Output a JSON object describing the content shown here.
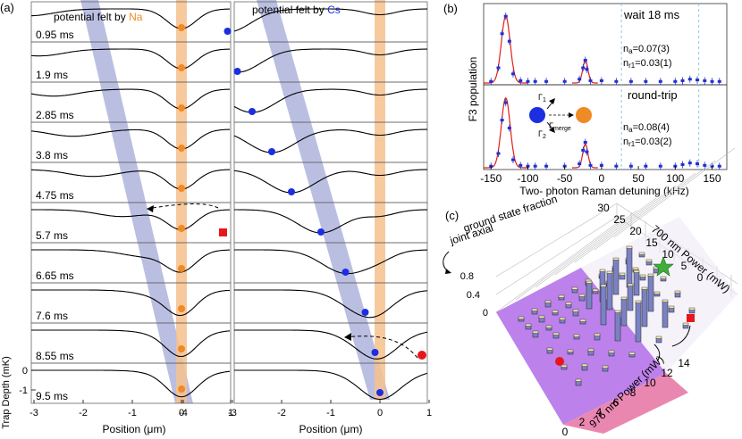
{
  "panel_a": {
    "label": "(a)",
    "left_title_prefix": "potential felt by ",
    "left_title_species": "Na",
    "right_title_prefix": "potential felt by ",
    "right_title_species": "Cs",
    "times": [
      "0.95 ms",
      "1.9 ms",
      "2.85 ms",
      "3.8 ms",
      "4.75 ms",
      "5.7 ms",
      "6.65 ms",
      "7.6 ms",
      "8.55 ms",
      "9.5 ms"
    ],
    "xlabel_left": "Position (μm)",
    "xlabel_right": "Position (μm)",
    "ylabel": "Trap Depth (mK)",
    "xticks_left": [
      "-4",
      "-3",
      "-2",
      "-1",
      "0",
      "1"
    ],
    "xticks_right": [
      "-4",
      "-3",
      "-2",
      "-1",
      "0",
      "1"
    ],
    "yticks": [
      "0",
      "-1"
    ]
  },
  "panel_b": {
    "label": "(b)",
    "top_note": "wait 18 ms",
    "top_na": "n",
    "top_na_sub": "a",
    "top_na_val": "=0.07(3)",
    "top_nr": "n",
    "top_nr_sub": "r1",
    "top_nr_val": "=0.03(1)",
    "bottom_note": "round-trip",
    "bottom_na": "n",
    "bottom_na_sub": "a",
    "bottom_na_val": "=0.08(4)",
    "bottom_nr": "n",
    "bottom_nr_sub": "r1",
    "bottom_nr_val": "=0.03(2)",
    "gamma1": "Γ",
    "gamma1_sub": "1",
    "gamma2": "Γ",
    "gamma2_sub": "2",
    "gamma_merge": "Γ",
    "gamma_merge_sub": "merge",
    "ylabel": "F3 population",
    "xlabel": "Two- photon Raman detuning (kHz)",
    "xticks": [
      "-150",
      "-100",
      "-50",
      "0",
      "50",
      "100",
      "150"
    ]
  },
  "panel_c": {
    "label": "(c)",
    "zlabel_line1": "joint axial",
    "zlabel_line2": "ground state fraction",
    "zticks": [
      "0.8",
      "0.4",
      "0"
    ],
    "x700_label": "700 nm Power (mW)",
    "x700_ticks": [
      "30",
      "25",
      "20",
      "15",
      "10",
      "5",
      "0"
    ],
    "x976_label": "976 nm Power (mW)",
    "x976_ticks": [
      "0",
      "2",
      "4",
      "6",
      "8",
      "10",
      "12",
      "14"
    ]
  },
  "colors": {
    "na": "#f08a24",
    "cs": "#1b2fe0",
    "red_fit": "#e0201a",
    "blue_data": "#2030d0",
    "lavender": "#9da4d6",
    "peach": "#f6c18d",
    "violet": "#b06be6",
    "pink": "#e87aa8",
    "star": "#3fae3a",
    "marker_red": "#e8161b"
  },
  "chart_data": {
    "type": "scatter",
    "title": "",
    "xlabel": "Two- photon Raman detuning (kHz)",
    "ylabel": "F3 population",
    "xlim": [
      -160,
      170
    ],
    "ylim": [
      0,
      1
    ],
    "series": [
      {
        "name": "wait 18 ms",
        "x": [
          -150,
          -140,
          -135,
          -130,
          -125,
          -120,
          -110,
          -100,
          -90,
          -75,
          -50,
          -30,
          -25,
          -22,
          -20,
          -15,
          0,
          20,
          40,
          60,
          80,
          100,
          110,
          120,
          130,
          140,
          150,
          160
        ],
        "y": [
          0.02,
          0.2,
          0.65,
          0.88,
          0.55,
          0.12,
          0.03,
          0.02,
          0.02,
          0.02,
          0.02,
          0.05,
          0.2,
          0.3,
          0.18,
          0.03,
          0.03,
          0.02,
          0.02,
          0.02,
          0.02,
          0.02,
          0.03,
          0.05,
          0.04,
          0.03,
          0.02,
          0.02
        ]
      },
      {
        "name": "round-trip",
        "x": [
          -150,
          -140,
          -135,
          -130,
          -125,
          -120,
          -110,
          -100,
          -90,
          -75,
          -50,
          -30,
          -25,
          -22,
          -20,
          -15,
          0,
          20,
          40,
          60,
          80,
          100,
          110,
          120,
          130,
          140,
          150,
          160
        ],
        "y": [
          0.02,
          0.18,
          0.6,
          0.82,
          0.5,
          0.1,
          0.03,
          0.02,
          0.02,
          0.02,
          0.02,
          0.05,
          0.22,
          0.32,
          0.2,
          0.03,
          0.03,
          0.02,
          0.02,
          0.02,
          0.02,
          0.02,
          0.04,
          0.06,
          0.05,
          0.03,
          0.02,
          0.02
        ]
      }
    ]
  }
}
